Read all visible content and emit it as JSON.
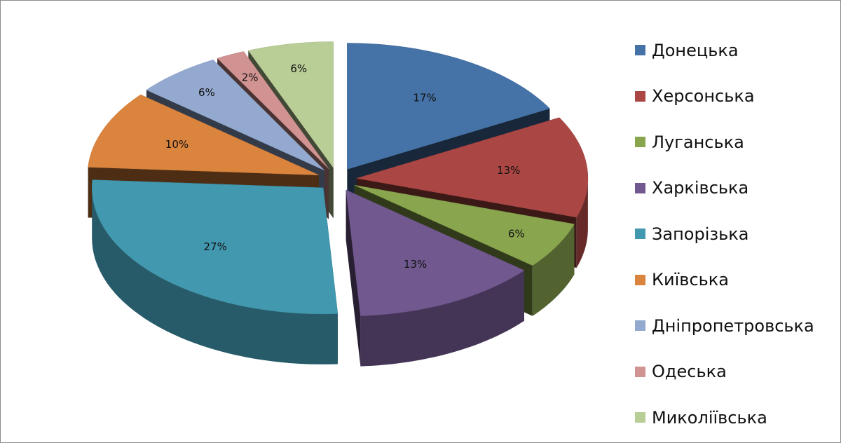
{
  "chart_data": {
    "type": "pie",
    "variant": "3d-exploded",
    "title": "",
    "legend_position": "right",
    "categories": [
      "Донецька",
      "Херсонська",
      "Луганська",
      "Харківська",
      "Запорізька",
      "Київська",
      "Дніпропетровська",
      "Одеська",
      "Миколіївська"
    ],
    "values": [
      17,
      13,
      6,
      13,
      27,
      10,
      6,
      2,
      6
    ],
    "labels": [
      "17%",
      "13%",
      "6%",
      "13%",
      "27%",
      "10%",
      "6%",
      "2%",
      "6%"
    ],
    "colors": [
      "#4572a7",
      "#aa4643",
      "#89a54e",
      "#71588f",
      "#4198af",
      "#db843d",
      "#93a9cf",
      "#d19392",
      "#b9cd96"
    ]
  }
}
